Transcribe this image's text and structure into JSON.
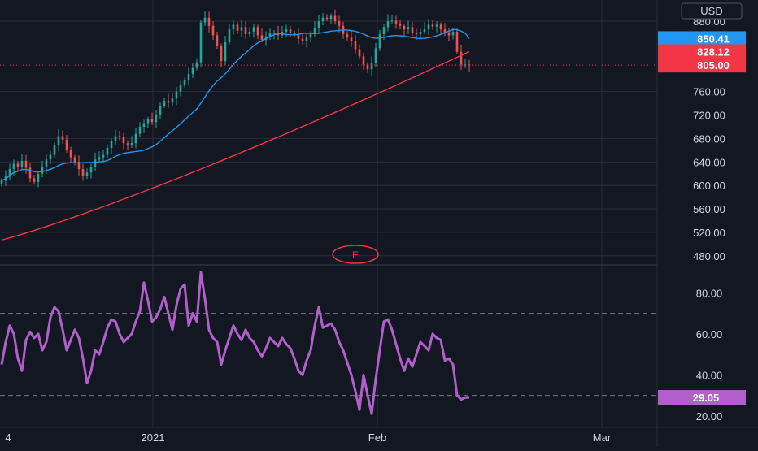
{
  "currency_button": "USD",
  "colors": {
    "background": "#131722",
    "grid": "#2a2e39",
    "axis_text": "#d1d4dc",
    "candle_up": "#26a69a",
    "candle_down": "#ef5350",
    "ma_fast": "#2196f3",
    "ma_slow": "#f23645",
    "rsi": "#b15fcb",
    "last_price": "#f23645",
    "earnings_marker": "#f23645"
  },
  "x_axis_labels": [
    "4",
    "2021",
    "Feb",
    "Mar"
  ],
  "earnings_marker": "E",
  "chart_data": [
    {
      "type": "candlestick",
      "price_axis": {
        "ylim": [
          470,
          905
        ],
        "ticks": [
          "480.00",
          "520.00",
          "560.00",
          "600.00",
          "640.00",
          "680.00",
          "720.00",
          "760.00",
          "880.00"
        ]
      },
      "close": [
        608,
        615,
        628,
        637,
        632,
        642,
        630,
        612,
        606,
        620,
        631,
        644,
        652,
        668,
        684,
        678,
        660,
        648,
        640,
        628,
        616,
        622,
        632,
        644,
        648,
        652,
        664,
        676,
        684,
        682,
        672,
        668,
        672,
        688,
        700,
        706,
        713,
        708,
        720,
        736,
        744,
        741,
        748,
        760,
        772,
        780,
        790,
        800,
        810,
        878,
        886,
        872,
        856,
        838,
        812,
        844,
        866,
        874,
        864,
        870,
        858,
        862,
        870,
        856,
        848,
        854,
        860,
        860,
        856,
        862,
        866,
        860,
        856,
        850,
        846,
        852,
        858,
        868,
        880,
        886,
        884,
        889,
        880,
        872,
        858,
        852,
        846,
        832,
        820,
        806,
        798,
        809,
        834,
        858,
        870,
        880,
        881,
        876,
        872,
        866,
        870,
        860,
        858,
        862,
        866,
        874,
        871,
        874,
        866,
        860,
        856,
        862,
        828,
        806,
        806,
        805
      ],
      "ma_fast_end": 850.41,
      "ma_slow_end": 828.12,
      "last_price": 805.0,
      "price_labels": [
        "850.41",
        "828.12",
        "805.00"
      ]
    },
    {
      "type": "line",
      "name": "RSI",
      "ylim": [
        16,
        92
      ],
      "ticks": [
        "20.00",
        "40.00",
        "60.00",
        "80.00"
      ],
      "bands": [
        30,
        70
      ],
      "values": [
        45,
        56,
        64,
        60,
        48,
        42,
        57,
        61,
        58,
        60,
        52,
        56,
        68,
        73,
        71,
        62,
        52,
        57,
        62,
        58,
        48,
        36,
        42,
        52,
        50,
        56,
        63,
        67,
        66,
        60,
        56,
        58,
        60,
        66,
        71,
        85,
        76,
        66,
        68,
        72,
        78,
        70,
        62,
        74,
        82,
        84,
        64,
        70,
        66,
        90,
        77,
        62,
        58,
        56,
        45,
        52,
        58,
        64,
        60,
        57,
        62,
        58,
        56,
        52,
        49,
        53,
        58,
        56,
        54,
        58,
        55,
        53,
        48,
        42,
        40,
        47,
        52,
        64,
        73,
        63,
        64,
        65,
        62,
        56,
        52,
        46,
        40,
        32,
        23,
        40,
        30,
        21,
        38,
        52,
        66,
        67,
        62,
        55,
        48,
        42,
        48,
        44,
        50,
        56,
        54,
        52,
        60,
        58,
        57,
        47,
        48,
        45,
        30,
        28,
        29,
        29.05
      ],
      "last_value": 29.05,
      "last_label": "29.05"
    }
  ]
}
